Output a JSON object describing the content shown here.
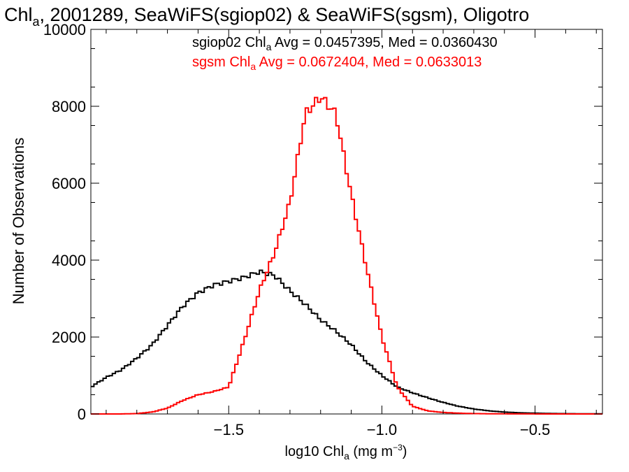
{
  "chart_data": {
    "type": "line",
    "title": {
      "prefix": "Chl",
      "prefix_sub": "a",
      "rest": ", 2001289, SeaWiFS(sgiop02) & SeaWiFS(sgsm), Oligotro"
    },
    "xlabel": {
      "main": "log10 Chl",
      "sub": "a",
      "unit": " (mg m",
      "exp": "−3",
      "close": ")"
    },
    "ylabel": "Number of Observations",
    "xlim": [
      -1.95,
      -0.28
    ],
    "ylim": [
      0,
      10000
    ],
    "x_ticks": [
      -1.5,
      -1.0,
      -0.5
    ],
    "x_tick_labels": [
      "−1.5",
      "−1.0",
      "−0.5"
    ],
    "y_ticks": [
      0,
      2000,
      4000,
      6000,
      8000,
      10000
    ],
    "y_tick_labels": [
      "0",
      "2000",
      "4000",
      "6000",
      "8000",
      "10000"
    ],
    "grid": false,
    "legend": [
      {
        "prefix": "sgiop02 Chl",
        "sub": "a",
        "rest": " Avg = 0.0457395, Med = 0.0360430",
        "color": "#000000"
      },
      {
        "prefix": "sgsm Chl",
        "sub": "a",
        "rest": " Avg = 0.0672404, Med = 0.0633013",
        "color": "#ff0000"
      }
    ],
    "series": [
      {
        "name": "sgiop02",
        "color": "#000000",
        "x": [
          -1.95,
          -1.9,
          -1.85,
          -1.8,
          -1.75,
          -1.7,
          -1.65,
          -1.6,
          -1.55,
          -1.5,
          -1.45,
          -1.4,
          -1.35,
          -1.3,
          -1.25,
          -1.2,
          -1.15,
          -1.1,
          -1.05,
          -1.0,
          -0.95,
          -0.9,
          -0.85,
          -0.8,
          -0.75,
          -0.7,
          -0.65,
          -0.6,
          -0.55,
          -0.5,
          -0.45,
          -0.4,
          -0.35,
          -0.3
        ],
        "y": [
          700,
          950,
          1150,
          1450,
          1800,
          2300,
          2800,
          3150,
          3350,
          3450,
          3550,
          3700,
          3600,
          3200,
          2850,
          2450,
          2150,
          1800,
          1350,
          1000,
          700,
          550,
          420,
          300,
          200,
          130,
          80,
          50,
          30,
          20,
          12,
          8,
          5,
          3
        ]
      },
      {
        "name": "sgsm",
        "color": "#ff0000",
        "x": [
          -1.95,
          -1.9,
          -1.85,
          -1.8,
          -1.75,
          -1.7,
          -1.65,
          -1.6,
          -1.55,
          -1.5,
          -1.45,
          -1.4,
          -1.35,
          -1.3,
          -1.25,
          -1.2,
          -1.15,
          -1.1,
          -1.05,
          -1.0,
          -0.95,
          -0.9,
          -0.85,
          -0.8,
          -0.75,
          -0.7,
          -0.65,
          -0.6,
          -0.55,
          -0.5,
          -0.45,
          -0.4,
          -0.35,
          -0.3
        ],
        "y": [
          0,
          0,
          0,
          10,
          50,
          150,
          350,
          500,
          580,
          700,
          1900,
          3200,
          4200,
          5500,
          7800,
          8250,
          7800,
          5700,
          3800,
          2000,
          700,
          200,
          80,
          40,
          20,
          10,
          5,
          3,
          2,
          1,
          0,
          0,
          0,
          0
        ]
      }
    ]
  }
}
